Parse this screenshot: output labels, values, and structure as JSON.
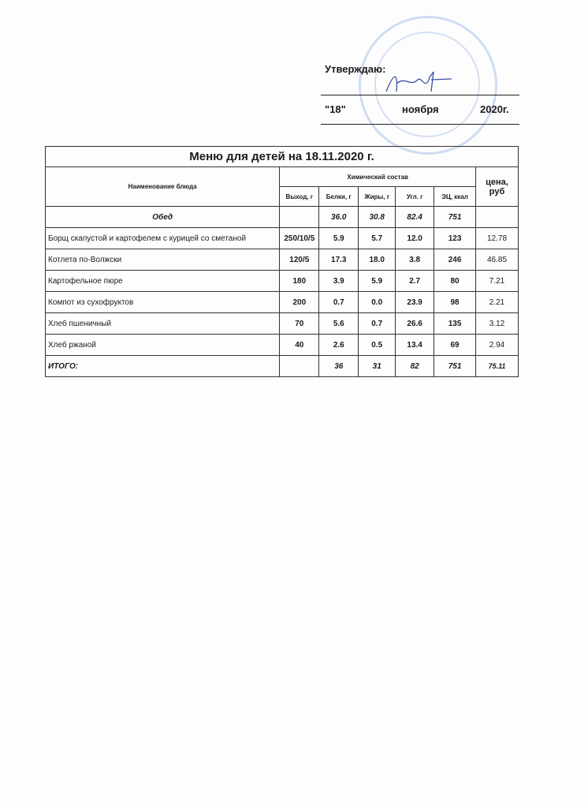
{
  "approval": {
    "label": "Утверждаю:",
    "day": "\"18\"",
    "month": "ноября",
    "year": "2020г."
  },
  "menu": {
    "title": "Меню для детей на 18.11.2020 г.",
    "headers": {
      "name": "Наименование блюда",
      "chem": "Химический состав",
      "price": "цена, руб",
      "yield": "Выход, г",
      "protein": "Белки, г",
      "fat": "Жиры, г",
      "carbs": "Угл. г",
      "energy": "ЭЦ, ккал"
    },
    "section": {
      "label": "Обед",
      "protein": "36.0",
      "fat": "30.8",
      "carbs": "82.4",
      "energy": "751"
    },
    "rows": [
      {
        "name": "Борщ скапустой и картофелем с курицей со сметаной",
        "yield": "250/10/5",
        "protein": "5.9",
        "fat": "5.7",
        "carbs": "12.0",
        "energy": "123",
        "price": "12.78"
      },
      {
        "name": "Котлета по-Волжски",
        "yield": "120/5",
        "protein": "17.3",
        "fat": "18.0",
        "carbs": "3.8",
        "energy": "246",
        "price": "46.85"
      },
      {
        "name": "Картофельное пюре",
        "yield": "180",
        "protein": "3.9",
        "fat": "5.9",
        "carbs": "2.7",
        "energy": "80",
        "price": "7.21"
      },
      {
        "name": "Компот из сухофруктов",
        "yield": "200",
        "protein": "0.7",
        "fat": "0.0",
        "carbs": "23.9",
        "energy": "98",
        "price": "2.21"
      },
      {
        "name": "Хлеб пшеничный",
        "yield": "70",
        "protein": "5.6",
        "fat": "0.7",
        "carbs": "26.6",
        "energy": "135",
        "price": "3.12"
      },
      {
        "name": "Хлеб ржаной",
        "yield": "40",
        "protein": "2.6",
        "fat": "0.5",
        "carbs": "13.4",
        "energy": "69",
        "price": "2.94"
      }
    ],
    "total": {
      "label": "ИТОГО:",
      "protein": "36",
      "fat": "31",
      "carbs": "82",
      "energy": "751",
      "price": "75.11"
    }
  }
}
